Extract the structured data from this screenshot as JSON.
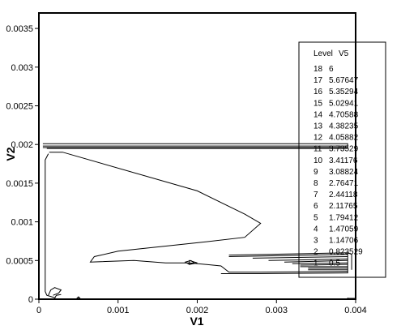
{
  "chart_data": {
    "type": "line",
    "subtype": "contour",
    "xlabel": "V1",
    "ylabel": "V2",
    "xlim": [
      0,
      0.004
    ],
    "ylim": [
      0,
      0.0037
    ],
    "x_ticks": [
      {
        "value": 0,
        "label": "0"
      },
      {
        "value": 0.001,
        "label": "0.001"
      },
      {
        "value": 0.002,
        "label": "0.002"
      },
      {
        "value": 0.003,
        "label": "0.003"
      },
      {
        "value": 0.004,
        "label": "0.004"
      }
    ],
    "y_ticks": [
      {
        "value": 0,
        "label": "0"
      },
      {
        "value": 0.0005,
        "label": "0.0005"
      },
      {
        "value": 0.001,
        "label": "0.001"
      },
      {
        "value": 0.0015,
        "label": "0.0015"
      },
      {
        "value": 0.002,
        "label": "0.002"
      },
      {
        "value": 0.0025,
        "label": "0.0025"
      },
      {
        "value": 0.003,
        "label": "0.003"
      },
      {
        "value": 0.0035,
        "label": "0.0035"
      }
    ],
    "legend": {
      "position": "right",
      "header_level": "Level",
      "header_value": "V5",
      "entries": [
        {
          "level": "18",
          "value": "6"
        },
        {
          "level": "17",
          "value": "5.67647"
        },
        {
          "level": "16",
          "value": "5.35294"
        },
        {
          "level": "15",
          "value": "5.02941"
        },
        {
          "level": "14",
          "value": "4.70588"
        },
        {
          "level": "13",
          "value": "4.38235"
        },
        {
          "level": "12",
          "value": "4.05882"
        },
        {
          "level": "11",
          "value": "3.73529"
        },
        {
          "level": "10",
          "value": "3.41176"
        },
        {
          "level": "9",
          "value": "3.08824"
        },
        {
          "level": "8",
          "value": "2.76471"
        },
        {
          "level": "7",
          "value": "2.44118"
        },
        {
          "level": "6",
          "value": "2.11765"
        },
        {
          "level": "5",
          "value": "1.79412"
        },
        {
          "level": "4",
          "value": "1.47059"
        },
        {
          "level": "3",
          "value": "1.14706"
        },
        {
          "level": "2",
          "value": "0.823529"
        },
        {
          "level": "1",
          "value": "0.5"
        }
      ]
    },
    "contours": [
      {
        "points": [
          [
            5e-05,
            0.00201
          ],
          [
            0.0039,
            0.00201
          ],
          [
            0.0039,
            0.00196
          ],
          [
            5e-05,
            0.00196
          ]
        ],
        "closed": false
      },
      {
        "points": [
          [
            5e-05,
            0.00198
          ],
          [
            0.0039,
            0.00198
          ]
        ],
        "closed": false
      },
      {
        "points": [
          [
            0.0001,
            0.00195
          ],
          [
            0.0039,
            0.00195
          ]
        ],
        "closed": false
      },
      {
        "points": [
          [
            0.00013,
            0.0019
          ],
          [
            0.0003,
            0.0019
          ],
          [
            0.002,
            0.0014
          ],
          [
            0.0026,
            0.0011
          ],
          [
            0.0028,
            0.00098
          ],
          [
            0.0026,
            0.0008
          ],
          [
            0.002,
            0.00073
          ],
          [
            0.001,
            0.00062
          ],
          [
            0.0007,
            0.00055
          ],
          [
            0.00065,
            0.00048
          ],
          [
            0.0012,
            0.0005
          ],
          [
            0.0016,
            0.00047
          ],
          [
            0.0019,
            0.00047
          ],
          [
            0.0023,
            0.00043
          ],
          [
            0.0024,
            0.00035
          ],
          [
            0.0028,
            0.00035
          ],
          [
            0.0039,
            0.00036
          ],
          [
            0.0039,
            0.00034
          ],
          [
            0.0028,
            0.00033
          ],
          [
            0.0023,
            0.00033
          ]
        ],
        "closed": false
      },
      {
        "points": [
          [
            0.00012,
            0.00188
          ],
          [
            8e-05,
            0.0018
          ],
          [
            8e-05,
            0.0001
          ],
          [
            0.0001,
            5e-05
          ],
          [
            0.0002,
            2e-05
          ]
        ],
        "closed": false
      },
      {
        "points": [
          [
            0.0019,
            0.0005
          ],
          [
            0.0019,
            0.00045
          ],
          [
            0.002,
            0.00047
          ]
        ],
        "closed": true
      },
      {
        "points": [
          [
            0.00185,
            0.00048
          ],
          [
            0.00192,
            0.0005
          ],
          [
            0.00196,
            0.00047
          ],
          [
            0.0019,
            0.00045
          ]
        ],
        "closed": true
      },
      {
        "points": [
          [
            0.0024,
            0.00057
          ],
          [
            0.0039,
            0.0006
          ]
        ],
        "closed": false
      },
      {
        "points": [
          [
            0.0024,
            0.00055
          ],
          [
            0.0039,
            0.00058
          ]
        ],
        "closed": false
      },
      {
        "points": [
          [
            0.0027,
            0.00053
          ],
          [
            0.0039,
            0.00055
          ]
        ],
        "closed": false
      },
      {
        "points": [
          [
            0.0029,
            0.0005
          ],
          [
            0.0039,
            0.00052
          ]
        ],
        "closed": false
      },
      {
        "points": [
          [
            0.0031,
            0.00048
          ],
          [
            0.0039,
            0.0005
          ]
        ],
        "closed": false
      },
      {
        "points": [
          [
            0.0032,
            0.00046
          ],
          [
            0.0039,
            0.00047
          ]
        ],
        "closed": false
      },
      {
        "points": [
          [
            0.0033,
            0.00044
          ],
          [
            0.0039,
            0.00045
          ]
        ],
        "closed": false
      },
      {
        "points": [
          [
            0.0033,
            0.00042
          ],
          [
            0.0039,
            0.00042
          ]
        ],
        "closed": false
      },
      {
        "points": [
          [
            0.0034,
            0.0004
          ],
          [
            0.0039,
            0.0004
          ]
        ],
        "closed": false
      },
      {
        "points": [
          [
            0.0034,
            0.00038
          ],
          [
            0.0039,
            0.00038
          ]
        ],
        "closed": false
      },
      {
        "points": [
          [
            0.0039,
            0.00036
          ],
          [
            0.0039,
            0.0006
          ],
          [
            0.00395,
            0.00058
          ],
          [
            0.00395,
            0.00038
          ]
        ],
        "closed": false
      },
      {
        "points": [
          [
            0.00012,
            5e-05
          ],
          [
            0.00015,
            0.00012
          ],
          [
            0.0002,
            0.00015
          ],
          [
            0.00028,
            0.00012
          ],
          [
            0.00025,
            8e-05
          ],
          [
            0.00018,
            5e-05
          ]
        ],
        "closed": false
      },
      {
        "points": [
          [
            0.0002,
            1e-05
          ],
          [
            0.00022,
            5e-05
          ],
          [
            0.00028,
            6e-05
          ]
        ],
        "closed": false
      },
      {
        "points": [
          [
            0.00048,
            1e-05
          ],
          [
            0.0005,
            3e-05
          ],
          [
            0.00052,
            1e-05
          ]
        ],
        "closed": true
      },
      {
        "points": [
          [
            0.0039,
            2e-05
          ],
          [
            0.0039,
            1e-05
          ],
          [
            0.004,
            1e-05
          ]
        ],
        "closed": false
      }
    ]
  }
}
